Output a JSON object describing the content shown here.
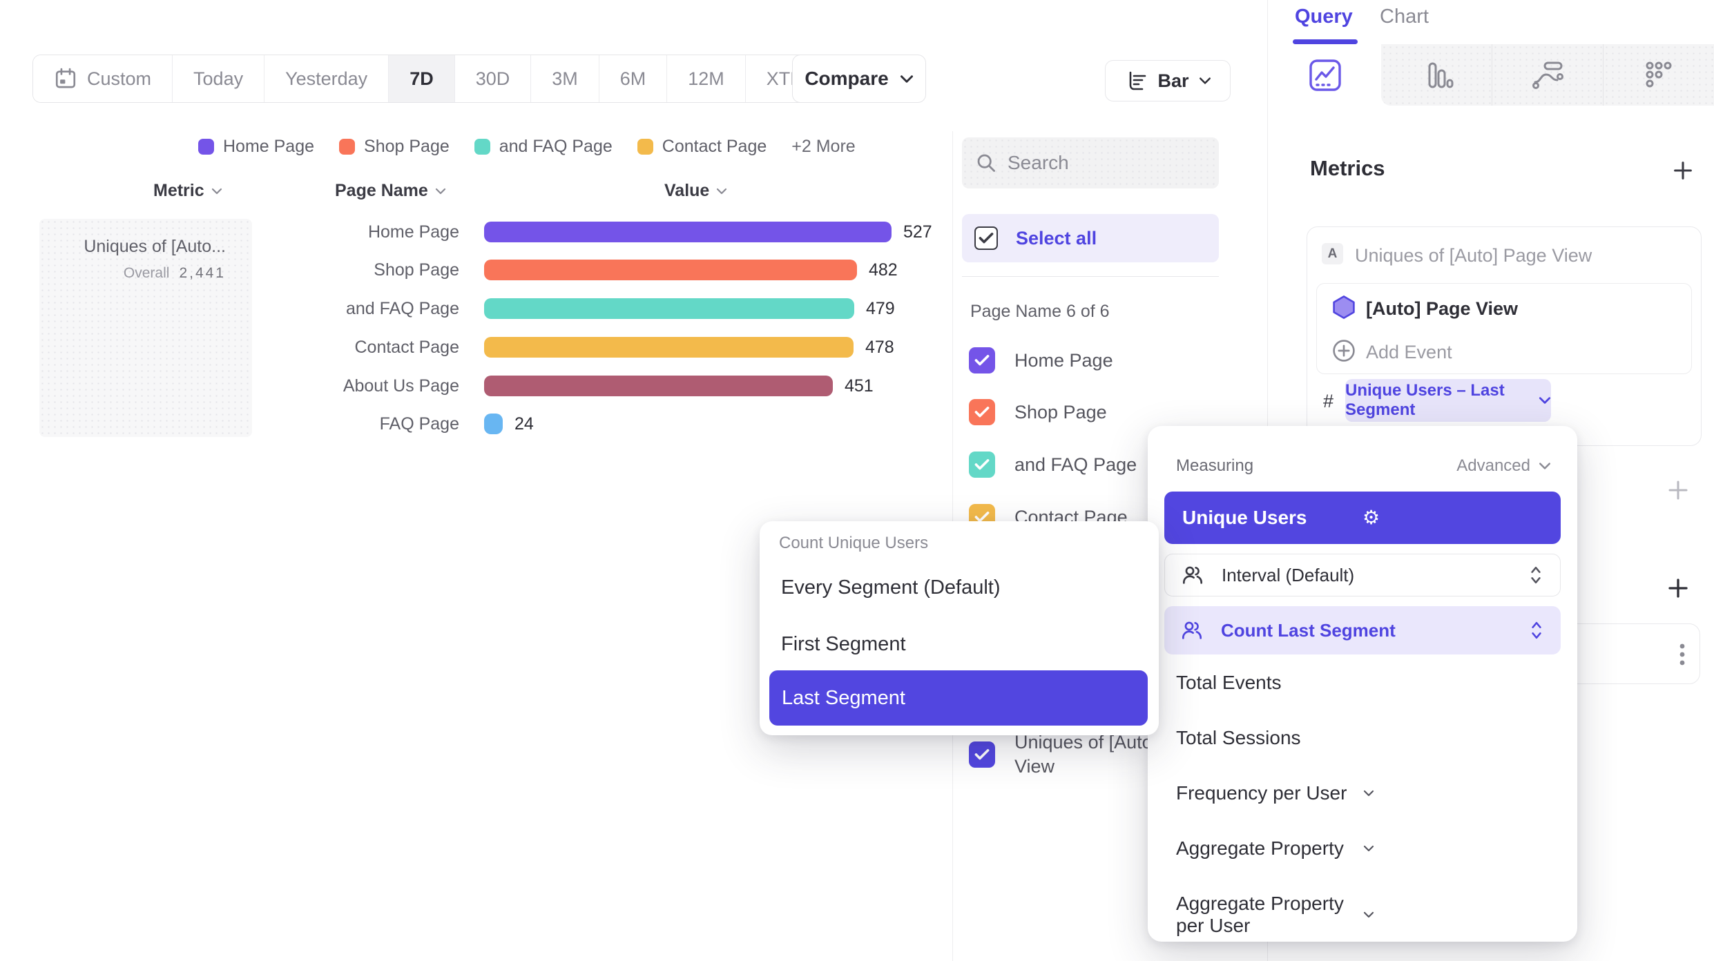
{
  "toolbar": {
    "date_ranges": [
      "Custom",
      "Today",
      "Yesterday",
      "7D",
      "30D",
      "3M",
      "6M",
      "12M",
      "XTD"
    ],
    "active_range": "7D",
    "compare_label": "Compare",
    "chart_type": "Bar"
  },
  "legend": {
    "items": [
      {
        "label": "Home Page",
        "color": "#7454E8"
      },
      {
        "label": "Shop Page",
        "color": "#F97559"
      },
      {
        "label": "and FAQ Page",
        "color": "#63D8C7"
      },
      {
        "label": "Contact Page",
        "color": "#F3BA4B"
      }
    ],
    "more_label": "+2 More"
  },
  "columns": {
    "metric": "Metric",
    "page_name": "Page Name",
    "value": "Value"
  },
  "metric_card": {
    "title": "Uniques of [Auto...",
    "overall_label": "Overall",
    "overall_value": "2,441"
  },
  "chart_data": {
    "type": "bar",
    "orientation": "horizontal",
    "metric": "Uniques of [Auto] Page View",
    "categories": [
      "Home Page",
      "Shop Page",
      "and FAQ Page",
      "Contact Page",
      "About Us Page",
      "FAQ Page"
    ],
    "values": [
      527,
      482,
      479,
      478,
      451,
      24
    ],
    "colors": [
      "#7454E8",
      "#F97559",
      "#63D8C7",
      "#F3BA4B",
      "#AF5C72",
      "#68B6F2"
    ],
    "overall_total": "2,441",
    "xlim": [
      0,
      527
    ],
    "value_labels_shown": true,
    "legend_position": "top"
  },
  "filter_panel": {
    "search_placeholder": "Search",
    "select_all_label": "Select all",
    "group_label": "Page Name 6 of 6",
    "items": [
      {
        "label": "Home Page",
        "color": "#7454E8",
        "checked": true
      },
      {
        "label": "Shop Page",
        "color": "#F97559",
        "checked": true
      },
      {
        "label": "and FAQ Page",
        "color": "#63D8C7",
        "checked": true
      },
      {
        "label": "Contact Page",
        "color": "#F3BA4B",
        "checked": true
      }
    ],
    "metric_item": {
      "label_line1": "Uniques of [Auto",
      "label_line2": "View",
      "color": "#5246E0",
      "checked": true
    }
  },
  "query_panel": {
    "tab_query": "Query",
    "tab_chart": "Chart",
    "metrics_header": "Metrics",
    "metric_badge": "A",
    "metric_title": "Uniques of [Auto] Page View",
    "event_name": "[Auto] Page View",
    "add_event_label": "Add Event",
    "hash_symbol": "#",
    "measurement_pill": "Unique Users – Last Segment"
  },
  "measuring_menu": {
    "title": "Measuring",
    "advanced_label": "Advanced",
    "selected_option": "Unique Users",
    "interval_label": "Interval (Default)",
    "count_segment_label": "Count Last Segment",
    "items": [
      {
        "label": "Total Events",
        "chevron": false
      },
      {
        "label": "Total Sessions",
        "chevron": false
      },
      {
        "label": "Frequency per User",
        "chevron": true
      },
      {
        "label": "Aggregate Property",
        "chevron": true
      },
      {
        "label": "Aggregate Property per User",
        "chevron": true
      }
    ]
  },
  "segment_menu": {
    "title": "Count Unique Users",
    "options": [
      {
        "label": "Every Segment (Default)",
        "selected": false
      },
      {
        "label": "First Segment",
        "selected": false
      },
      {
        "label": "Last Segment",
        "selected": true
      }
    ]
  },
  "colors": {
    "accent": "#5246E0",
    "accent_light": "#E7E4FA",
    "selected_row": "#5246E0"
  }
}
